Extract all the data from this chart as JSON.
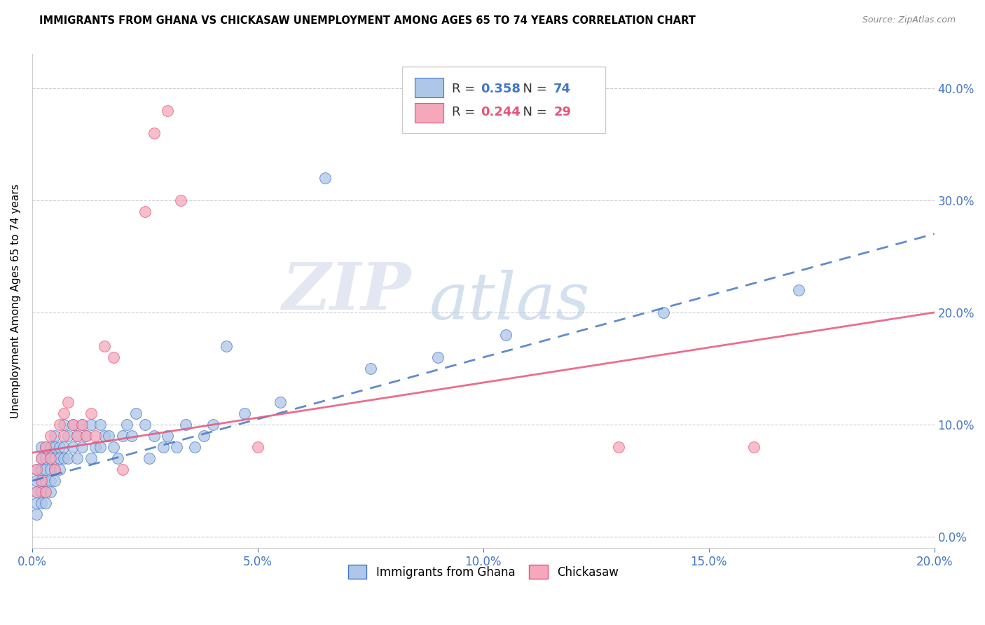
{
  "title": "IMMIGRANTS FROM GHANA VS CHICKASAW UNEMPLOYMENT AMONG AGES 65 TO 74 YEARS CORRELATION CHART",
  "source": "Source: ZipAtlas.com",
  "ylabel": "Unemployment Among Ages 65 to 74 years",
  "xlim": [
    0.0,
    0.2
  ],
  "ylim": [
    -0.01,
    0.43
  ],
  "xticks": [
    0.0,
    0.05,
    0.1,
    0.15,
    0.2
  ],
  "yticks": [
    0.0,
    0.1,
    0.2,
    0.3,
    0.4
  ],
  "R_ghana": 0.358,
  "N_ghana": 74,
  "R_chickasaw": 0.244,
  "N_chickasaw": 29,
  "ghana_color": "#aec6e8",
  "chickasaw_color": "#f5a8bb",
  "ghana_line_color": "#4477c4",
  "chickasaw_line_color": "#e8547a",
  "watermark_zip": "ZIP",
  "watermark_atlas": "atlas",
  "legend_ghana_label": "Immigrants from Ghana",
  "legend_chickasaw_label": "Chickasaw",
  "ghana_x": [
    0.001,
    0.001,
    0.001,
    0.001,
    0.001,
    0.002,
    0.002,
    0.002,
    0.002,
    0.002,
    0.002,
    0.003,
    0.003,
    0.003,
    0.003,
    0.003,
    0.003,
    0.004,
    0.004,
    0.004,
    0.004,
    0.004,
    0.005,
    0.005,
    0.005,
    0.005,
    0.005,
    0.006,
    0.006,
    0.006,
    0.007,
    0.007,
    0.007,
    0.008,
    0.008,
    0.009,
    0.009,
    0.01,
    0.01,
    0.011,
    0.011,
    0.012,
    0.013,
    0.013,
    0.014,
    0.015,
    0.015,
    0.016,
    0.017,
    0.018,
    0.019,
    0.02,
    0.021,
    0.022,
    0.023,
    0.025,
    0.026,
    0.027,
    0.029,
    0.03,
    0.032,
    0.034,
    0.036,
    0.038,
    0.04,
    0.043,
    0.047,
    0.055,
    0.065,
    0.075,
    0.09,
    0.105,
    0.14,
    0.17
  ],
  "ghana_y": [
    0.02,
    0.03,
    0.04,
    0.05,
    0.06,
    0.03,
    0.04,
    0.05,
    0.06,
    0.07,
    0.08,
    0.04,
    0.05,
    0.06,
    0.07,
    0.03,
    0.08,
    0.04,
    0.05,
    0.06,
    0.07,
    0.08,
    0.05,
    0.06,
    0.07,
    0.08,
    0.09,
    0.06,
    0.07,
    0.08,
    0.07,
    0.08,
    0.1,
    0.07,
    0.09,
    0.08,
    0.1,
    0.07,
    0.09,
    0.1,
    0.08,
    0.09,
    0.07,
    0.1,
    0.08,
    0.08,
    0.1,
    0.09,
    0.09,
    0.08,
    0.07,
    0.09,
    0.1,
    0.09,
    0.11,
    0.1,
    0.07,
    0.09,
    0.08,
    0.09,
    0.08,
    0.1,
    0.08,
    0.09,
    0.1,
    0.17,
    0.11,
    0.12,
    0.32,
    0.15,
    0.16,
    0.18,
    0.2,
    0.22
  ],
  "chickasaw_x": [
    0.001,
    0.001,
    0.002,
    0.002,
    0.003,
    0.003,
    0.004,
    0.004,
    0.005,
    0.006,
    0.007,
    0.007,
    0.008,
    0.009,
    0.01,
    0.011,
    0.012,
    0.013,
    0.014,
    0.016,
    0.018,
    0.02,
    0.025,
    0.027,
    0.03,
    0.033,
    0.05,
    0.13,
    0.16
  ],
  "chickasaw_y": [
    0.04,
    0.06,
    0.05,
    0.07,
    0.04,
    0.08,
    0.09,
    0.07,
    0.06,
    0.1,
    0.09,
    0.11,
    0.12,
    0.1,
    0.09,
    0.1,
    0.09,
    0.11,
    0.09,
    0.17,
    0.16,
    0.06,
    0.29,
    0.36,
    0.38,
    0.3,
    0.08,
    0.08,
    0.08
  ],
  "ghana_trend_x0": 0.0,
  "ghana_trend_y0": 0.05,
  "ghana_trend_x1": 0.2,
  "ghana_trend_y1": 0.27,
  "chickasaw_trend_x0": 0.0,
  "chickasaw_trend_y0": 0.075,
  "chickasaw_trend_x1": 0.2,
  "chickasaw_trend_y1": 0.2
}
